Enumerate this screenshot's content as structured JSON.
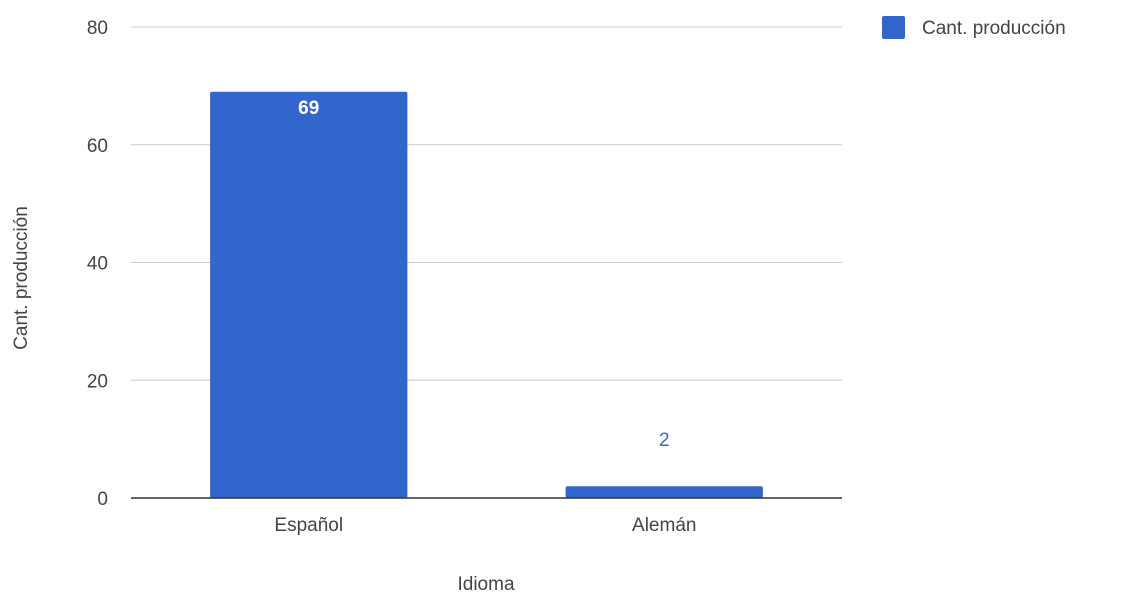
{
  "chart_data": {
    "type": "bar",
    "title": "",
    "xlabel": "Idioma",
    "ylabel": "Cant. producción",
    "categories": [
      "Español",
      "Alemán"
    ],
    "series": [
      {
        "name": "Cant. producción",
        "values": [
          69,
          2
        ],
        "data_labels": [
          "69",
          "2"
        ],
        "color": "#3366cc"
      }
    ],
    "ylim": [
      0,
      80
    ],
    "yticks": [
      0,
      20,
      40,
      60,
      80
    ],
    "ytick_labels": [
      "0",
      "20",
      "40",
      "60",
      "80"
    ],
    "grid": true,
    "legend": {
      "position": "top-right",
      "labels": [
        "Cant. producción"
      ]
    }
  },
  "colors": {
    "bar": "#3366cc",
    "grid": "#cccccc",
    "axis": "#333333",
    "text": "#444444",
    "label_inside": "#ffffff",
    "label_outside": "#3366cc"
  }
}
